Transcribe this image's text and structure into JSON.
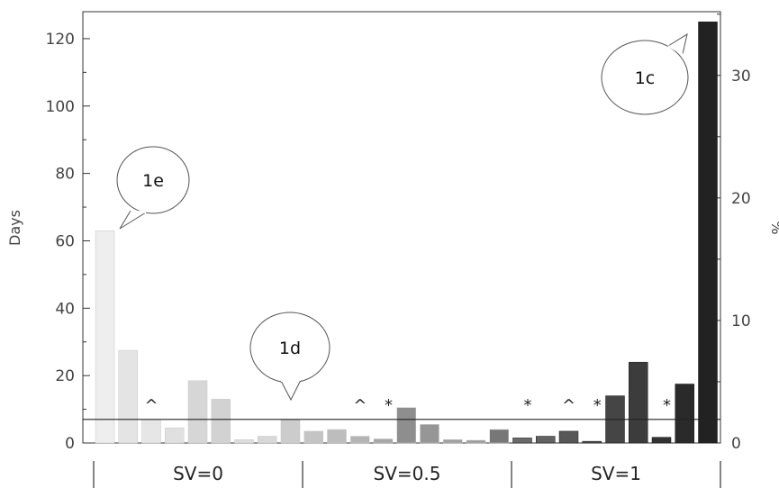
{
  "chart_data": {
    "type": "bar",
    "ylabel_left": "Days",
    "ylabel_right": "%",
    "ylim_left": [
      0,
      128
    ],
    "yticks_left": [
      0,
      20,
      40,
      60,
      80,
      100,
      120
    ],
    "ylim_right": [
      0,
      35.2
    ],
    "yticks_right": [
      0,
      10,
      20,
      30
    ],
    "reference_line": 7,
    "values": [
      63,
      27.5,
      7,
      4.5,
      18.5,
      13,
      1,
      2,
      7,
      3.5,
      4,
      2,
      1.2,
      10.5,
      5.5,
      1,
      0.8,
      4,
      1.5,
      2,
      3.5,
      0.5,
      14,
      24,
      1.7,
      17.5,
      125
    ],
    "groups": [
      {
        "label": "SV=0",
        "indices": [
          0,
          1,
          2,
          3,
          4,
          5,
          6,
          7,
          8
        ]
      },
      {
        "label": "SV=0.5",
        "indices": [
          9,
          10,
          11,
          12,
          13,
          14,
          15,
          16,
          17
        ]
      },
      {
        "label": "SV=1",
        "indices": [
          18,
          19,
          20,
          21,
          22,
          23,
          24,
          25,
          26
        ]
      }
    ],
    "markers": [
      {
        "bar": 2,
        "symbol": "^"
      },
      {
        "bar": 11,
        "symbol": "^"
      },
      {
        "bar": 12,
        "symbol": "*"
      },
      {
        "bar": 18,
        "symbol": "*"
      },
      {
        "bar": 20,
        "symbol": "^"
      },
      {
        "bar": 21,
        "symbol": "*"
      },
      {
        "bar": 24,
        "symbol": "*"
      }
    ],
    "callouts": [
      {
        "label": "1e",
        "bar": 0
      },
      {
        "label": "1d",
        "bar": 8
      },
      {
        "label": "1c",
        "bar": 26
      }
    ],
    "colors": {
      "bars": [
        "#eeeeee",
        "#e4e4e4",
        "#e6e6e6",
        "#e0e0e0",
        "#d6d6d6",
        "#d2d2d2",
        "#dedede",
        "#d8d8d8",
        "#cccccc",
        "#c4c4c4",
        "#bdbdbd",
        "#b4b4b4",
        "#a6a6a6",
        "#8e8e8e",
        "#969696",
        "#a0a0a0",
        "#9a9a9a",
        "#777777",
        "#6a6a6a",
        "#626262",
        "#575757",
        "#4c4c4c",
        "#454545",
        "#3c3c3c",
        "#333333",
        "#2a2a2a",
        "#222222"
      ],
      "axis": "#333333",
      "bar_outline": "#999999"
    }
  }
}
